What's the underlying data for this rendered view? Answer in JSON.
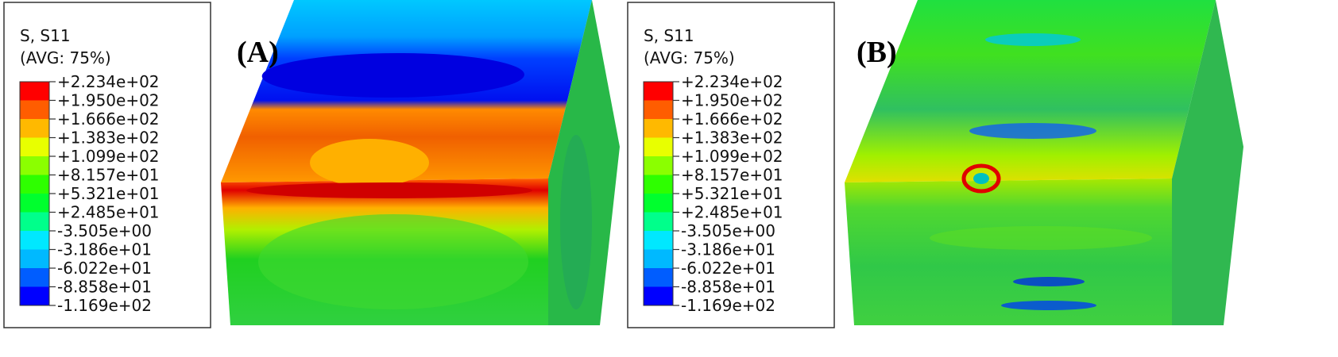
{
  "panels": [
    {
      "label": "(A)",
      "legend": {
        "title": [
          "S, S11",
          "(AVG: 75%)"
        ],
        "levels": [
          "+2.234e+02",
          "+1.950e+02",
          "+1.666e+02",
          "+1.383e+02",
          "+1.099e+02",
          "+8.157e+01",
          "+5.321e+01",
          "+2.485e+01",
          "-3.505e+00",
          "-3.186e+01",
          "-6.022e+01",
          "-8.858e+01",
          "-1.169e+02"
        ]
      }
    },
    {
      "label": "(B)",
      "legend": {
        "title": [
          "S, S11",
          "(AVG: 75%)"
        ],
        "levels": [
          "+2.234e+02",
          "+1.950e+02",
          "+1.666e+02",
          "+1.383e+02",
          "+1.099e+02",
          "+8.157e+01",
          "+5.321e+01",
          "+2.485e+01",
          "-3.505e+00",
          "-3.186e+01",
          "-6.022e+01",
          "-8.858e+01",
          "-1.169e+02"
        ]
      }
    }
  ]
}
